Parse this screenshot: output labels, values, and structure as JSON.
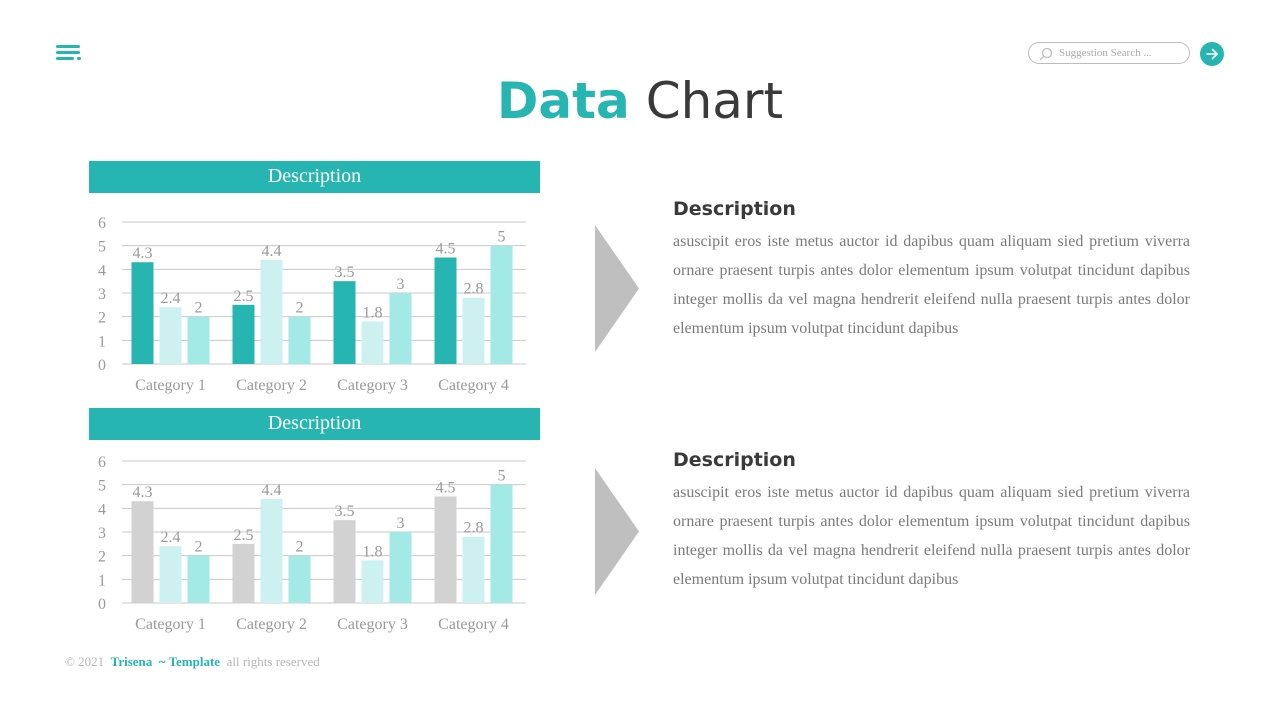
{
  "header": {
    "search_placeholder": "Suggestion Search ...",
    "title_accent": "Data",
    "title_rest": "Chart"
  },
  "colors": {
    "accent": "#26b5b0",
    "light_teal": "#cdf1f1",
    "mid_teal": "#a3e9e6",
    "gray_bar": "#d2d2d2",
    "arrow_gray": "#bfbfbf"
  },
  "chart_data": [
    {
      "type": "bar",
      "title": "Description",
      "categories": [
        "Category 1",
        "Category 2",
        "Category 3",
        "Category 4"
      ],
      "series": [
        {
          "values": [
            4.3,
            2.5,
            3.5,
            4.5
          ],
          "color": "#26b5b0"
        },
        {
          "values": [
            2.4,
            4.4,
            1.8,
            2.8
          ],
          "color": "#cdf1f1"
        },
        {
          "values": [
            2,
            2,
            3,
            5
          ],
          "color": "#a3e9e6"
        }
      ],
      "ylim": [
        0,
        6
      ],
      "yticks": [
        0,
        1,
        2,
        3,
        4,
        5,
        6
      ],
      "grid": true
    },
    {
      "type": "bar",
      "title": "Description",
      "categories": [
        "Category 1",
        "Category 2",
        "Category 3",
        "Category 4"
      ],
      "series": [
        {
          "values": [
            4.3,
            2.5,
            3.5,
            4.5
          ],
          "color": "#d2d2d2"
        },
        {
          "values": [
            2.4,
            4.4,
            1.8,
            2.8
          ],
          "color": "#cdf1f1"
        },
        {
          "values": [
            2,
            2,
            3,
            5
          ],
          "color": "#a3e9e6"
        }
      ],
      "ylim": [
        0,
        6
      ],
      "yticks": [
        0,
        1,
        2,
        3,
        4,
        5,
        6
      ],
      "grid": true
    }
  ],
  "descriptions": [
    {
      "title": "Description",
      "text": "asuscipit eros iste metus auctor id dapibus quam aliquam sied pretium viverra ornare praesent turpis antes dolor elementum ipsum volutpat tincidunt dapibus integer mollis da vel magna hendrerit eleifend nulla praesent turpis antes dolor elementum ipsum volutpat tincidunt dapibus"
    },
    {
      "title": "Description",
      "text": "asuscipit eros iste metus auctor id dapibus quam aliquam sied pretium viverra ornare praesent turpis antes dolor elementum ipsum volutpat tincidunt dapibus integer mollis da vel magna hendrerit eleifend nulla praesent turpis antes dolor elementum ipsum volutpat tincidunt dapibus"
    }
  ],
  "footer": {
    "copyright": "© 2021",
    "brand": "Trisena  ~ Template",
    "rights": "all rights reserved"
  }
}
